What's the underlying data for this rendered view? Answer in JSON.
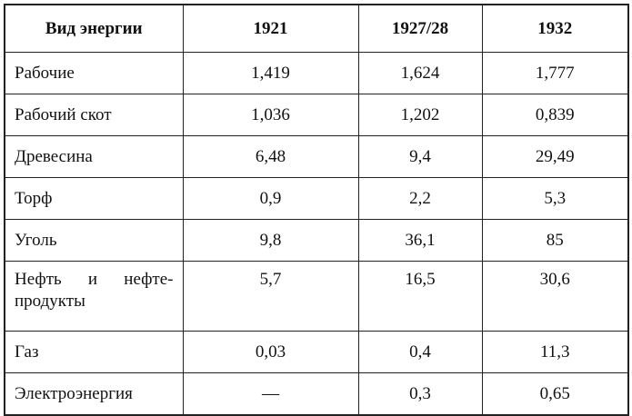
{
  "table": {
    "header": [
      "Вид энергии",
      "1921",
      "1927/28",
      "1932"
    ],
    "rows": [
      [
        "Рабочие",
        "1,419",
        "1,624",
        "1,777"
      ],
      [
        "Рабочий скот",
        "1,036",
        "1,202",
        "0,839"
      ],
      [
        "Древесина",
        "6,48",
        "9,4",
        "29,49"
      ],
      [
        "Торф",
        "0,9",
        "2,2",
        "5,3"
      ],
      [
        "Уголь",
        "9,8",
        "36,1",
        "85"
      ],
      [
        "Нефть и нефте-продукты",
        "5,7",
        "16,5",
        "30,6"
      ],
      [
        "Газ",
        "0,03",
        "0,4",
        "11,3"
      ],
      [
        "Электроэнергия",
        "—",
        "0,3",
        "0,65"
      ]
    ]
  }
}
